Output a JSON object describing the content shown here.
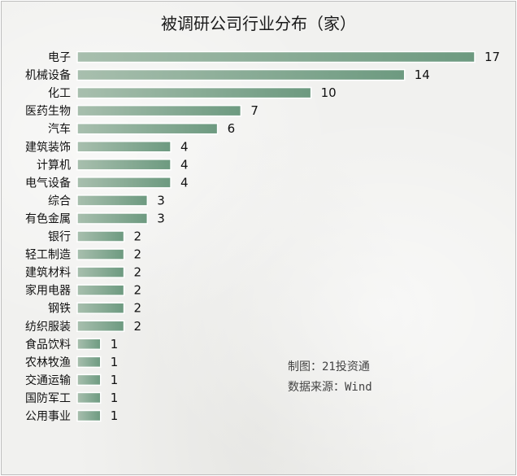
{
  "chart_data": {
    "type": "bar",
    "orientation": "horizontal",
    "title": "被调研公司行业分布（家）",
    "categories": [
      "电子",
      "机械设备",
      "化工",
      "医药生物",
      "汽车",
      "建筑装饰",
      "计算机",
      "电气设备",
      "综合",
      "有色金属",
      "银行",
      "轻工制造",
      "建筑材料",
      "家用电器",
      "钢铁",
      "纺织服装",
      "食品饮料",
      "农林牧渔",
      "交通运输",
      "国防军工",
      "公用事业"
    ],
    "values": [
      17,
      14,
      10,
      7,
      6,
      4,
      4,
      4,
      3,
      3,
      2,
      2,
      2,
      2,
      2,
      2,
      1,
      1,
      1,
      1,
      1
    ],
    "xlim": [
      0,
      17
    ],
    "grid": false,
    "legend": "none",
    "bar_color": "#7fa58e"
  },
  "notes": {
    "source_line1": "制图：21投资通",
    "source_line2": "数据来源：Wind"
  }
}
